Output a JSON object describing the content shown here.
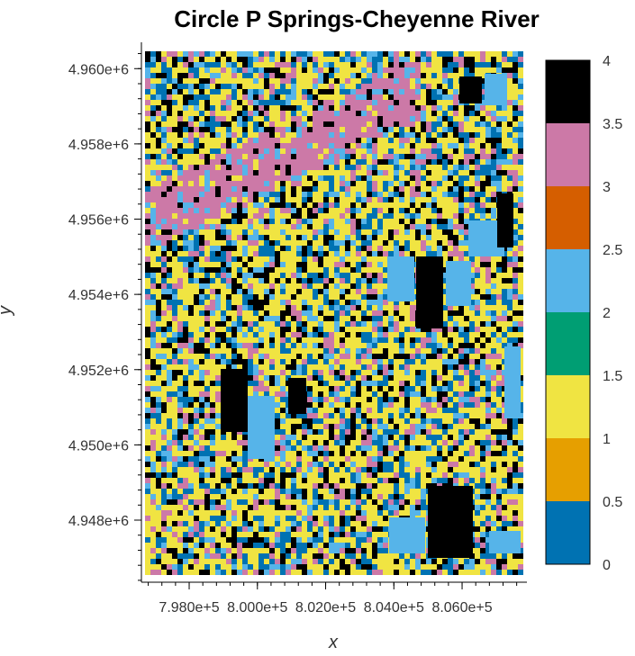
{
  "chart_data": {
    "type": "heatmap",
    "title": "Circle P Springs-Cheyenne River",
    "xlabel": "x",
    "ylabel": "y",
    "x_ticks": [
      "7.980e+5",
      "8.000e+5",
      "8.020e+5",
      "8.040e+5",
      "8.060e+5"
    ],
    "x_tick_values": [
      798000,
      800000,
      802000,
      804000,
      806000
    ],
    "y_ticks": [
      "4.948e+6",
      "4.950e+6",
      "4.952e+6",
      "4.954e+6",
      "4.956e+6",
      "4.958e+6",
      "4.960e+6"
    ],
    "y_tick_values": [
      4948000,
      4950000,
      4952000,
      4954000,
      4956000,
      4958000,
      4960000
    ],
    "xlim": [
      796600,
      807900
    ],
    "ylim": [
      4946350,
      4960700
    ],
    "colorbar": {
      "range": [
        0,
        4
      ],
      "ticks": [
        "0",
        "0.5",
        "1",
        "1.5",
        "2",
        "2.5",
        "3",
        "3.5",
        "4"
      ],
      "tick_values": [
        0,
        0.5,
        1,
        1.5,
        2,
        2.5,
        3,
        3.5,
        4
      ],
      "bins": [
        {
          "from": 0.0,
          "to": 0.5,
          "color": "#0072b2"
        },
        {
          "from": 0.5,
          "to": 1.0,
          "color": "#e69f00"
        },
        {
          "from": 1.0,
          "to": 1.5,
          "color": "#f0e442"
        },
        {
          "from": 1.5,
          "to": 2.0,
          "color": "#009e73"
        },
        {
          "from": 2.0,
          "to": 2.5,
          "color": "#56b4e9"
        },
        {
          "from": 2.5,
          "to": 3.0,
          "color": "#d55e00"
        },
        {
          "from": 3.0,
          "to": 3.5,
          "color": "#cc79a7"
        },
        {
          "from": 3.5,
          "to": 4.0,
          "color": "#000000"
        }
      ]
    },
    "grid": false
  }
}
